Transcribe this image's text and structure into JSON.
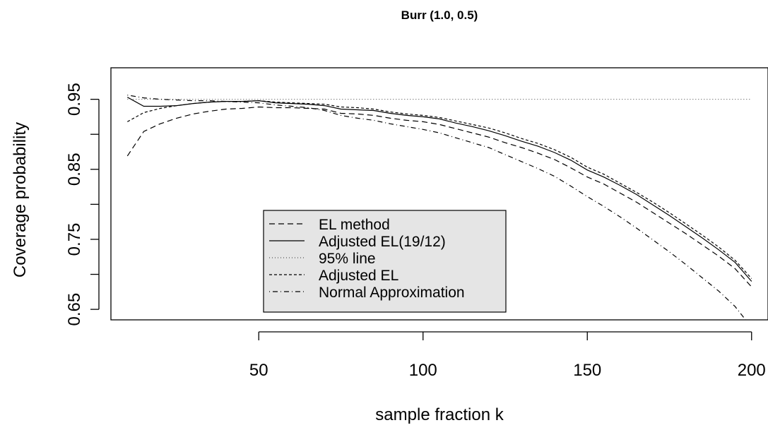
{
  "chart_data": {
    "type": "line",
    "title": "Burr (1.0, 0.5)",
    "xlabel": "sample fraction k",
    "ylabel": "Coverage probability",
    "xlim": [
      5,
      205
    ],
    "ylim": [
      0.635,
      0.995
    ],
    "xticks": [
      50,
      100,
      150,
      200
    ],
    "xtick_labels": [
      "50",
      "100",
      "150",
      "200"
    ],
    "yticks": [
      0.65,
      0.7,
      0.75,
      0.8,
      0.85,
      0.9,
      0.95
    ],
    "ytick_labels": [
      "0.65",
      "",
      "0.75",
      "",
      "0.85",
      "",
      "0.95"
    ],
    "grid": false,
    "legend_position": "bottom-left",
    "x": [
      10,
      15,
      20,
      25,
      30,
      35,
      40,
      45,
      50,
      55,
      60,
      65,
      70,
      75,
      80,
      85,
      90,
      95,
      100,
      105,
      110,
      115,
      120,
      125,
      130,
      135,
      140,
      145,
      150,
      155,
      160,
      165,
      170,
      175,
      180,
      185,
      190,
      195,
      200
    ],
    "series": [
      {
        "name": "EL method",
        "style": "dashed",
        "values": [
          0.869,
          0.904,
          0.915,
          0.923,
          0.929,
          0.933,
          0.936,
          0.937,
          0.939,
          0.938,
          0.938,
          0.937,
          0.936,
          0.93,
          0.929,
          0.927,
          0.923,
          0.92,
          0.918,
          0.914,
          0.908,
          0.902,
          0.896,
          0.888,
          0.881,
          0.873,
          0.864,
          0.852,
          0.839,
          0.829,
          0.816,
          0.803,
          0.788,
          0.773,
          0.758,
          0.742,
          0.726,
          0.708,
          0.682
        ]
      },
      {
        "name": "Adjusted EL(19/12)",
        "style": "solid",
        "values": [
          0.953,
          0.94,
          0.94,
          0.941,
          0.944,
          0.946,
          0.947,
          0.947,
          0.948,
          0.945,
          0.944,
          0.943,
          0.941,
          0.936,
          0.935,
          0.934,
          0.93,
          0.927,
          0.925,
          0.922,
          0.916,
          0.911,
          0.905,
          0.898,
          0.89,
          0.883,
          0.874,
          0.863,
          0.849,
          0.839,
          0.827,
          0.814,
          0.799,
          0.784,
          0.768,
          0.752,
          0.735,
          0.717,
          0.69
        ]
      },
      {
        "name": "95% line",
        "style": "dotted",
        "values": [
          0.95,
          0.95,
          0.95,
          0.95,
          0.95,
          0.95,
          0.95,
          0.95,
          0.95,
          0.95,
          0.95,
          0.95,
          0.95,
          0.95,
          0.95,
          0.95,
          0.95,
          0.95,
          0.95,
          0.95,
          0.95,
          0.95,
          0.95,
          0.95,
          0.95,
          0.95,
          0.95,
          0.95,
          0.95,
          0.95,
          0.95,
          0.95,
          0.95,
          0.95,
          0.95,
          0.95,
          0.95,
          0.95,
          0.95
        ]
      },
      {
        "name": "Adjusted EL",
        "style": "shortdash",
        "values": [
          0.918,
          0.931,
          0.937,
          0.941,
          0.944,
          0.946,
          0.947,
          0.947,
          0.948,
          0.946,
          0.945,
          0.944,
          0.943,
          0.939,
          0.938,
          0.936,
          0.932,
          0.929,
          0.927,
          0.924,
          0.919,
          0.914,
          0.909,
          0.902,
          0.894,
          0.887,
          0.878,
          0.867,
          0.853,
          0.843,
          0.83,
          0.817,
          0.803,
          0.788,
          0.772,
          0.756,
          0.739,
          0.72,
          0.694
        ]
      },
      {
        "name": "Normal Approximation",
        "style": "dotdash",
        "values": [
          0.956,
          0.952,
          0.95,
          0.949,
          0.948,
          0.948,
          0.947,
          0.946,
          0.945,
          0.942,
          0.94,
          0.938,
          0.934,
          0.927,
          0.923,
          0.92,
          0.915,
          0.911,
          0.907,
          0.902,
          0.895,
          0.888,
          0.881,
          0.871,
          0.861,
          0.851,
          0.84,
          0.826,
          0.811,
          0.797,
          0.782,
          0.766,
          0.749,
          0.732,
          0.714,
          0.695,
          0.676,
          0.654,
          0.624
        ]
      }
    ]
  }
}
